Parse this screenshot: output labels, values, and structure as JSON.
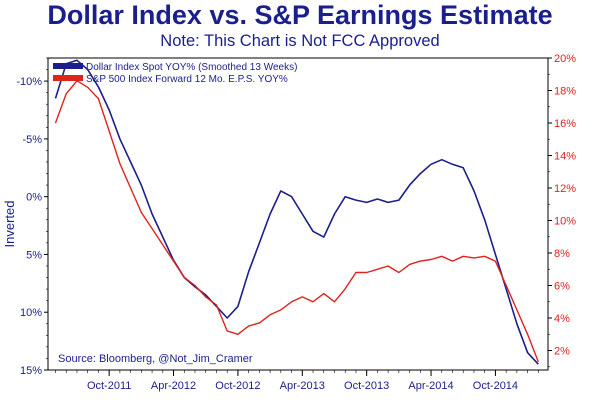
{
  "header": {
    "title": "Dollar Index vs. S&P Earnings Estimate",
    "subtitle": "Note: This Chart is Not FCC Approved"
  },
  "chart_data": {
    "type": "line",
    "title": "Dollar Index vs. S&P Earnings Estimate",
    "subtitle": "Note: This Chart is Not FCC Approved",
    "ylabel_left": "Inverted",
    "source": "Source: Bloomberg, @Not_Jim_Cramer",
    "left_axis": {
      "inverted": true,
      "range": [
        -12,
        15
      ],
      "ticks": [
        -10,
        -5,
        0,
        5,
        10,
        15
      ],
      "tick_labels": [
        "-10%",
        "-5%",
        "0%",
        "5%",
        "10%",
        "15%"
      ],
      "color": "#1a1f8c"
    },
    "right_axis": {
      "range": [
        0.8,
        20
      ],
      "ticks": [
        2,
        4,
        6,
        8,
        10,
        12,
        14,
        16,
        18,
        20
      ],
      "tick_labels": [
        "2%",
        "4%",
        "6%",
        "8%",
        "10%",
        "12%",
        "14%",
        "16%",
        "18%",
        "20%"
      ],
      "color": "#e0231b"
    },
    "x_axis": {
      "range": [
        "2011-04",
        "2015-03"
      ],
      "tick_labels": [
        "Oct-2011",
        "Apr-2012",
        "Oct-2012",
        "Apr-2013",
        "Oct-2013",
        "Apr-2014",
        "Oct-2014"
      ],
      "tick_dates": [
        "2011-10",
        "2012-04",
        "2012-10",
        "2013-04",
        "2013-10",
        "2014-04",
        "2014-10"
      ]
    },
    "legend": {
      "placement": "top-left"
    },
    "series": [
      {
        "name": "Dollar Index Spot YOY% (Smoothed 13 Weeks)",
        "axis": "left",
        "color": "#1a1f8c",
        "points": [
          [
            "2011-05",
            -8.5
          ],
          [
            "2011-06",
            -11.5
          ],
          [
            "2011-07",
            -11.8
          ],
          [
            "2011-08",
            -11.0
          ],
          [
            "2011-09",
            -9.5
          ],
          [
            "2011-10",
            -7.5
          ],
          [
            "2011-11",
            -5.0
          ],
          [
            "2011-12",
            -3.0
          ],
          [
            "2012-01",
            -1.0
          ],
          [
            "2012-02",
            1.5
          ],
          [
            "2012-03",
            3.5
          ],
          [
            "2012-04",
            5.5
          ],
          [
            "2012-05",
            7.0
          ],
          [
            "2012-06",
            7.8
          ],
          [
            "2012-07",
            8.5
          ],
          [
            "2012-08",
            9.5
          ],
          [
            "2012-09",
            10.5
          ],
          [
            "2012-10",
            9.5
          ],
          [
            "2012-11",
            6.5
          ],
          [
            "2012-12",
            4.0
          ],
          [
            "2013-01",
            1.5
          ],
          [
            "2013-02",
            -0.5
          ],
          [
            "2013-03",
            0.0
          ],
          [
            "2013-04",
            1.5
          ],
          [
            "2013-05",
            3.0
          ],
          [
            "2013-06",
            3.5
          ],
          [
            "2013-07",
            1.5
          ],
          [
            "2013-08",
            0.0
          ],
          [
            "2013-09",
            0.3
          ],
          [
            "2013-10",
            0.5
          ],
          [
            "2013-11",
            0.2
          ],
          [
            "2013-12",
            0.5
          ],
          [
            "2014-01",
            0.3
          ],
          [
            "2014-02",
            -1.0
          ],
          [
            "2014-03",
            -2.0
          ],
          [
            "2014-04",
            -2.8
          ],
          [
            "2014-05",
            -3.2
          ],
          [
            "2014-06",
            -2.8
          ],
          [
            "2014-07",
            -2.5
          ],
          [
            "2014-08",
            -0.5
          ],
          [
            "2014-09",
            2.0
          ],
          [
            "2014-10",
            5.0
          ],
          [
            "2014-11",
            8.0
          ],
          [
            "2014-12",
            11.0
          ],
          [
            "2015-01",
            13.5
          ],
          [
            "2015-02",
            14.5
          ]
        ]
      },
      {
        "name": "S&P 500 Index Forward 12 Mo. E.P.S. YOY%",
        "axis": "right",
        "color": "#e0231b",
        "points": [
          [
            "2011-05",
            16.0
          ],
          [
            "2011-06",
            17.8
          ],
          [
            "2011-07",
            18.6
          ],
          [
            "2011-08",
            18.2
          ],
          [
            "2011-09",
            17.5
          ],
          [
            "2011-10",
            15.5
          ],
          [
            "2011-11",
            13.5
          ],
          [
            "2011-12",
            12.0
          ],
          [
            "2012-01",
            10.5
          ],
          [
            "2012-02",
            9.5
          ],
          [
            "2012-03",
            8.5
          ],
          [
            "2012-04",
            7.5
          ],
          [
            "2012-05",
            6.5
          ],
          [
            "2012-06",
            6.0
          ],
          [
            "2012-07",
            5.3
          ],
          [
            "2012-08",
            4.8
          ],
          [
            "2012-09",
            3.2
          ],
          [
            "2012-10",
            3.0
          ],
          [
            "2012-11",
            3.5
          ],
          [
            "2012-12",
            3.7
          ],
          [
            "2013-01",
            4.2
          ],
          [
            "2013-02",
            4.5
          ],
          [
            "2013-03",
            5.0
          ],
          [
            "2013-04",
            5.3
          ],
          [
            "2013-05",
            5.0
          ],
          [
            "2013-06",
            5.5
          ],
          [
            "2013-07",
            5.0
          ],
          [
            "2013-08",
            5.8
          ],
          [
            "2013-09",
            6.8
          ],
          [
            "2013-10",
            6.8
          ],
          [
            "2013-11",
            7.0
          ],
          [
            "2013-12",
            7.2
          ],
          [
            "2014-01",
            6.8
          ],
          [
            "2014-02",
            7.3
          ],
          [
            "2014-03",
            7.5
          ],
          [
            "2014-04",
            7.6
          ],
          [
            "2014-05",
            7.8
          ],
          [
            "2014-06",
            7.5
          ],
          [
            "2014-07",
            7.8
          ],
          [
            "2014-08",
            7.7
          ],
          [
            "2014-09",
            7.8
          ],
          [
            "2014-10",
            7.5
          ],
          [
            "2014-11",
            6.0
          ],
          [
            "2014-12",
            4.5
          ],
          [
            "2015-01",
            3.0
          ],
          [
            "2015-02",
            1.3
          ]
        ]
      }
    ]
  }
}
